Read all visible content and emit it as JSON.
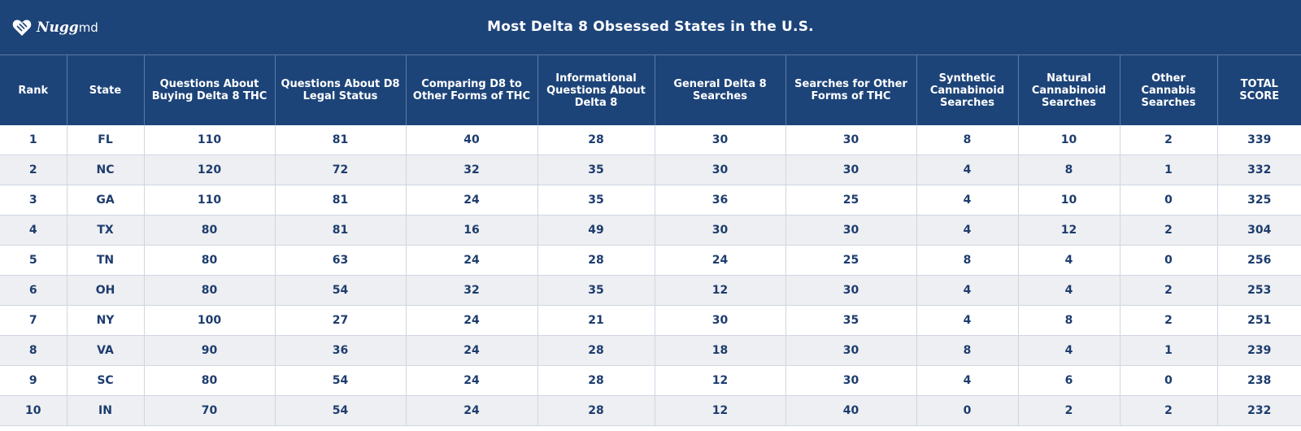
{
  "brand": {
    "name": "Nugg",
    "suffix": "md",
    "logo_icon": "leaf-heart-icon"
  },
  "colors": {
    "header_bg": "#1d4479",
    "cell_text": "#1d3c6e",
    "stripe": "#eeeff2"
  },
  "chart_data": {
    "type": "table",
    "title": "Most Delta 8 Obsessed States in the U.S.",
    "columns": [
      "Rank",
      "State",
      "Questions About Buying Delta 8 THC",
      "Questions About D8 Legal Status",
      "Comparing D8 to Other Forms of THC",
      "Informational Questions About Delta 8",
      "General Delta 8 Searches",
      "Searches for Other Forms of THC",
      "Synthetic Cannabinoid Searches",
      "Natural Cannabinoid Searches",
      "Other Cannabis Searches",
      "TOTAL SCORE"
    ],
    "rows": [
      [
        "1",
        "FL",
        "110",
        "81",
        "40",
        "28",
        "30",
        "30",
        "8",
        "10",
        "2",
        "339"
      ],
      [
        "2",
        "NC",
        "120",
        "72",
        "32",
        "35",
        "30",
        "30",
        "4",
        "8",
        "1",
        "332"
      ],
      [
        "3",
        "GA",
        "110",
        "81",
        "24",
        "35",
        "36",
        "25",
        "4",
        "10",
        "0",
        "325"
      ],
      [
        "4",
        "TX",
        "80",
        "81",
        "16",
        "49",
        "30",
        "30",
        "4",
        "12",
        "2",
        "304"
      ],
      [
        "5",
        "TN",
        "80",
        "63",
        "24",
        "28",
        "24",
        "25",
        "8",
        "4",
        "0",
        "256"
      ],
      [
        "6",
        "OH",
        "80",
        "54",
        "32",
        "35",
        "12",
        "30",
        "4",
        "4",
        "2",
        "253"
      ],
      [
        "7",
        "NY",
        "100",
        "27",
        "24",
        "21",
        "30",
        "35",
        "4",
        "8",
        "2",
        "251"
      ],
      [
        "8",
        "VA",
        "90",
        "36",
        "24",
        "28",
        "18",
        "30",
        "8",
        "4",
        "1",
        "239"
      ],
      [
        "9",
        "SC",
        "80",
        "54",
        "24",
        "28",
        "12",
        "30",
        "4",
        "6",
        "0",
        "238"
      ],
      [
        "10",
        "IN",
        "70",
        "54",
        "24",
        "28",
        "12",
        "40",
        "0",
        "2",
        "2",
        "232"
      ]
    ]
  }
}
